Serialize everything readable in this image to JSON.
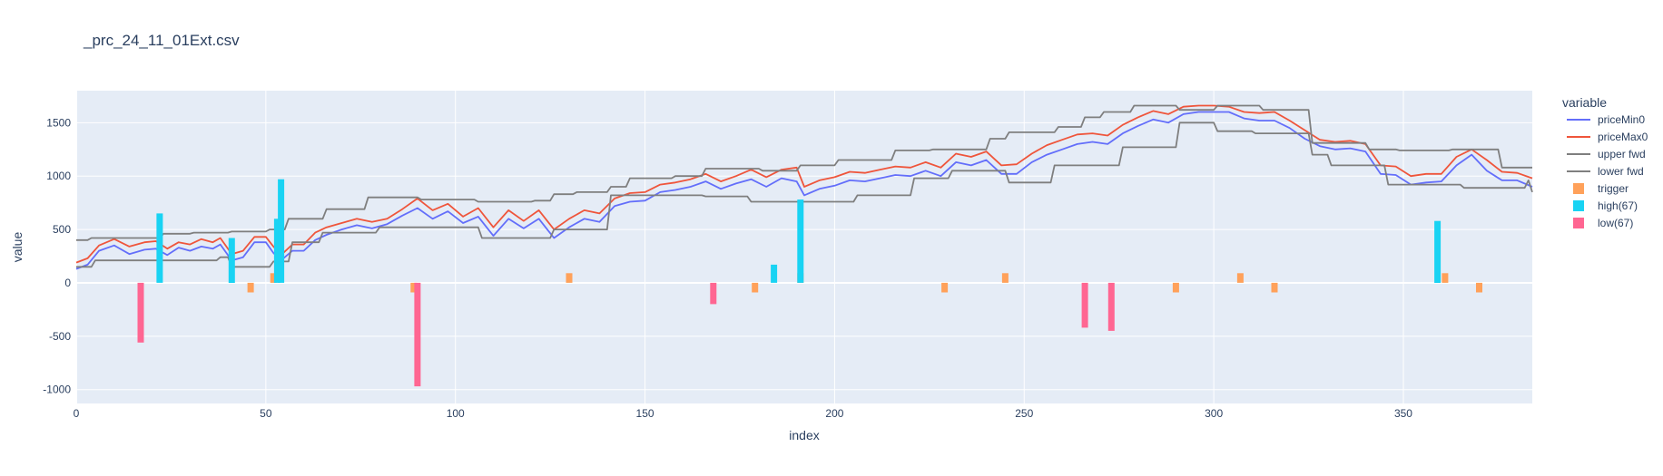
{
  "chart_data": {
    "type": "line",
    "title": "_prc_24_11_01Ext.csv",
    "xlabel": "index",
    "ylabel": "value",
    "xlim": [
      0,
      384
    ],
    "ylim": [
      -1130,
      1800
    ],
    "xticks": [
      0,
      50,
      100,
      150,
      200,
      250,
      300,
      350
    ],
    "yticks": [
      -1000,
      -500,
      0,
      500,
      1000,
      1500
    ],
    "grid": true,
    "legend_title": "variable",
    "legend_position": "right",
    "series": [
      {
        "name": "priceMin0",
        "kind": "line",
        "color": "#636efa",
        "x": [
          0,
          3,
          6,
          10,
          14,
          18,
          21,
          24,
          27,
          30,
          33,
          36,
          38,
          41,
          44,
          47,
          50,
          52,
          54,
          57,
          60,
          63,
          66,
          70,
          74,
          78,
          82,
          86,
          90,
          94,
          98,
          102,
          106,
          110,
          114,
          118,
          122,
          126,
          130,
          134,
          138,
          142,
          146,
          150,
          154,
          158,
          162,
          166,
          170,
          174,
          178,
          182,
          186,
          190,
          192,
          196,
          200,
          204,
          208,
          212,
          216,
          220,
          224,
          228,
          232,
          236,
          240,
          244,
          248,
          252,
          256,
          260,
          264,
          268,
          272,
          276,
          280,
          284,
          288,
          292,
          296,
          300,
          304,
          308,
          312,
          316,
          320,
          324,
          328,
          332,
          336,
          340,
          344,
          348,
          352,
          356,
          360,
          364,
          368,
          372,
          376,
          380,
          384
        ],
        "values": [
          130,
          170,
          300,
          350,
          270,
          310,
          320,
          260,
          330,
          300,
          340,
          320,
          360,
          210,
          240,
          380,
          380,
          280,
          210,
          300,
          300,
          400,
          450,
          500,
          540,
          510,
          550,
          630,
          700,
          600,
          670,
          560,
          620,
          440,
          600,
          510,
          600,
          420,
          520,
          600,
          570,
          720,
          760,
          770,
          850,
          870,
          900,
          950,
          880,
          930,
          970,
          900,
          980,
          950,
          820,
          880,
          910,
          960,
          950,
          980,
          1010,
          1000,
          1050,
          1000,
          1130,
          1100,
          1150,
          1020,
          1020,
          1130,
          1200,
          1250,
          1300,
          1320,
          1300,
          1400,
          1470,
          1530,
          1500,
          1580,
          1600,
          1600,
          1600,
          1540,
          1520,
          1520,
          1450,
          1350,
          1280,
          1250,
          1260,
          1230,
          1020,
          1010,
          920,
          940,
          950,
          1100,
          1200,
          1050,
          960,
          960,
          900
        ]
      },
      {
        "name": "priceMax0",
        "kind": "line",
        "color": "#ef553b",
        "x": [
          0,
          3,
          6,
          10,
          14,
          18,
          21,
          24,
          27,
          30,
          33,
          36,
          38,
          41,
          44,
          47,
          50,
          52,
          54,
          57,
          60,
          63,
          66,
          70,
          74,
          78,
          82,
          86,
          90,
          94,
          98,
          102,
          106,
          110,
          114,
          118,
          122,
          126,
          130,
          134,
          138,
          142,
          146,
          150,
          154,
          158,
          162,
          166,
          170,
          174,
          178,
          182,
          186,
          190,
          192,
          196,
          200,
          204,
          208,
          212,
          216,
          220,
          224,
          228,
          232,
          236,
          240,
          244,
          248,
          252,
          256,
          260,
          264,
          268,
          272,
          276,
          280,
          284,
          288,
          292,
          296,
          300,
          304,
          308,
          312,
          316,
          320,
          324,
          328,
          332,
          336,
          340,
          344,
          348,
          352,
          356,
          360,
          364,
          368,
          372,
          376,
          380,
          384
        ],
        "values": [
          190,
          230,
          350,
          410,
          340,
          380,
          390,
          320,
          380,
          360,
          410,
          380,
          420,
          270,
          300,
          430,
          430,
          340,
          260,
          360,
          360,
          470,
          520,
          560,
          600,
          570,
          600,
          690,
          790,
          680,
          740,
          620,
          700,
          520,
          680,
          580,
          680,
          500,
          600,
          680,
          650,
          790,
          840,
          850,
          920,
          940,
          970,
          1020,
          950,
          1000,
          1060,
          990,
          1060,
          1080,
          900,
          960,
          990,
          1040,
          1030,
          1060,
          1090,
          1080,
          1130,
          1080,
          1210,
          1180,
          1230,
          1100,
          1110,
          1210,
          1290,
          1340,
          1390,
          1400,
          1380,
          1480,
          1550,
          1610,
          1580,
          1650,
          1660,
          1660,
          1650,
          1600,
          1590,
          1600,
          1520,
          1430,
          1340,
          1320,
          1330,
          1300,
          1100,
          1090,
          1000,
          1020,
          1020,
          1180,
          1250,
          1150,
          1040,
          1030,
          980
        ]
      },
      {
        "name": "upper fwd",
        "kind": "line",
        "color": "#7f7f7f",
        "x": [
          0,
          3,
          4,
          22,
          23,
          30,
          31,
          40,
          41,
          50,
          51,
          55,
          56,
          65,
          66,
          76,
          77,
          90,
          91,
          105,
          106,
          120,
          121,
          125,
          126,
          131,
          132,
          140,
          141,
          145,
          146,
          157,
          158,
          165,
          166,
          180,
          181,
          190,
          191,
          200,
          201,
          215,
          216,
          225,
          226,
          240,
          241,
          245,
          246,
          258,
          259,
          265,
          266,
          270,
          271,
          278,
          279,
          290,
          291,
          300,
          301,
          312,
          313,
          325,
          326,
          340,
          341,
          348,
          349,
          362,
          363,
          375,
          376,
          384
        ],
        "values": [
          400,
          400,
          420,
          420,
          460,
          460,
          470,
          470,
          480,
          480,
          500,
          500,
          600,
          600,
          690,
          690,
          800,
          800,
          780,
          780,
          760,
          760,
          770,
          770,
          830,
          830,
          850,
          850,
          900,
          900,
          980,
          980,
          1000,
          1000,
          1070,
          1070,
          1050,
          1050,
          1100,
          1100,
          1150,
          1150,
          1240,
          1240,
          1250,
          1250,
          1350,
          1350,
          1410,
          1410,
          1460,
          1460,
          1550,
          1550,
          1600,
          1600,
          1660,
          1660,
          1620,
          1620,
          1660,
          1660,
          1620,
          1620,
          1310,
          1310,
          1250,
          1250,
          1240,
          1240,
          1250,
          1250,
          1080,
          1080
        ]
      },
      {
        "name": "lower fwd",
        "kind": "line",
        "color": "#7f7f7f",
        "x": [
          0,
          4,
          5,
          37,
          38,
          40,
          41,
          51,
          52,
          56,
          57,
          64,
          65,
          79,
          80,
          86,
          87,
          106,
          107,
          125,
          126,
          140,
          141,
          165,
          166,
          177,
          178,
          190,
          191,
          205,
          206,
          220,
          221,
          230,
          231,
          245,
          246,
          257,
          258,
          275,
          276,
          290,
          291,
          300,
          301,
          310,
          311,
          325,
          326,
          330,
          331,
          345,
          346,
          365,
          366,
          382,
          383,
          384
        ],
        "values": [
          150,
          150,
          210,
          210,
          240,
          240,
          150,
          150,
          200,
          200,
          380,
          380,
          470,
          470,
          520,
          520,
          520,
          520,
          420,
          420,
          500,
          500,
          820,
          820,
          810,
          810,
          760,
          760,
          760,
          760,
          820,
          820,
          980,
          980,
          1050,
          1050,
          940,
          940,
          1100,
          1100,
          1270,
          1270,
          1500,
          1500,
          1420,
          1420,
          1400,
          1400,
          1200,
          1200,
          1100,
          1100,
          920,
          920,
          890,
          890,
          960,
          850
        ]
      },
      {
        "name": "trigger",
        "kind": "bar",
        "color": "#ffa15a",
        "x": [
          46,
          52,
          89,
          130,
          179,
          191,
          229,
          245,
          290,
          307,
          316,
          361,
          370
        ],
        "values": [
          -90,
          90,
          -90,
          90,
          -90,
          90,
          -90,
          90,
          -90,
          90,
          -90,
          90,
          -90
        ]
      },
      {
        "name": "high(67)",
        "kind": "bar",
        "color": "#19d3f3",
        "x": [
          22,
          41,
          53,
          54,
          184,
          191,
          359
        ],
        "values": [
          650,
          420,
          600,
          970,
          170,
          780,
          580
        ]
      },
      {
        "name": "low(67)",
        "kind": "bar",
        "color": "#ff6692",
        "x": [
          17,
          90,
          168,
          266,
          273
        ],
        "values": [
          -560,
          -970,
          -200,
          -420,
          -450
        ]
      }
    ]
  }
}
